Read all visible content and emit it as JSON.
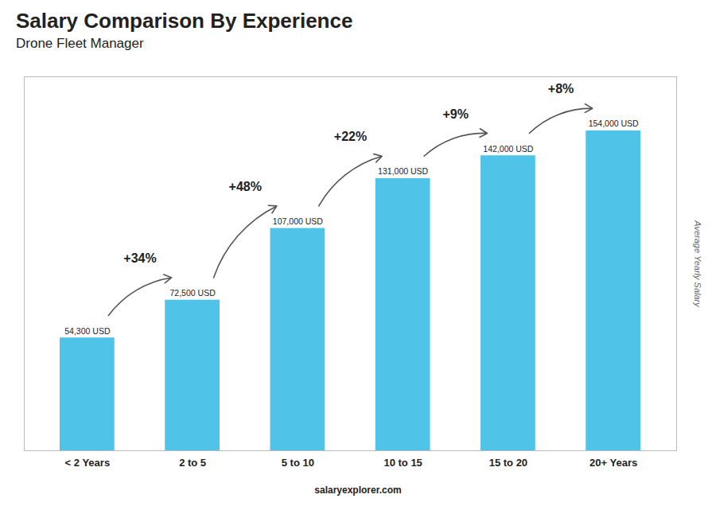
{
  "chart_data": {
    "type": "bar",
    "title": "Salary Comparison By Experience",
    "subtitle": "Drone Fleet Manager",
    "ylabel": "Average Yearly Salary",
    "categories": [
      "< 2 Years",
      "2 to 5",
      "5 to 10",
      "10 to 15",
      "15 to 20",
      "20+ Years"
    ],
    "values": [
      54300,
      72500,
      107000,
      131000,
      142000,
      154000
    ],
    "value_labels": [
      "54,300 USD",
      "72,500 USD",
      "107,000 USD",
      "131,000 USD",
      "142,000 USD",
      "154,000 USD"
    ],
    "data_labels": true,
    "annotations": [
      "+34%",
      "+48%",
      "+22%",
      "+9%",
      "+8%"
    ],
    "watermark": [
      "salary",
      "explorer.com"
    ],
    "color": "#4FC3E8",
    "ylim": [
      0,
      180000
    ],
    "yticks": [],
    "tick_labels": "x",
    "grid": false
  }
}
